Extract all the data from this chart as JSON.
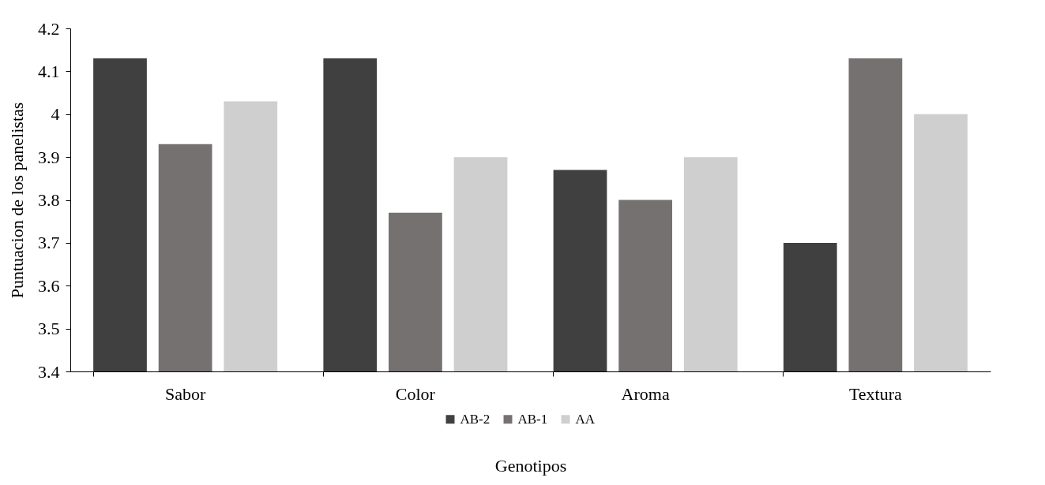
{
  "chart_data": {
    "type": "bar",
    "xlabel": "Genotipos",
    "ylabel": "Puntuacion de los panelistas",
    "categories": [
      "Sabor",
      "Color",
      "Aroma",
      "Textura"
    ],
    "series": [
      {
        "name": "AB-2",
        "color": "#404040",
        "values": [
          4.13,
          4.13,
          3.87,
          3.7
        ]
      },
      {
        "name": "AB-1",
        "color": "#767171",
        "values": [
          3.93,
          3.77,
          3.8,
          4.13
        ]
      },
      {
        "name": "AA",
        "color": "#cfcfcf",
        "values": [
          4.03,
          3.9,
          3.9,
          4.0
        ]
      }
    ],
    "ylim": [
      3.4,
      4.2
    ],
    "yticks": [
      3.4,
      3.5,
      3.6,
      3.7,
      3.8,
      3.9,
      4,
      4.1,
      4.2
    ],
    "grid": false,
    "legend": "bottom"
  }
}
